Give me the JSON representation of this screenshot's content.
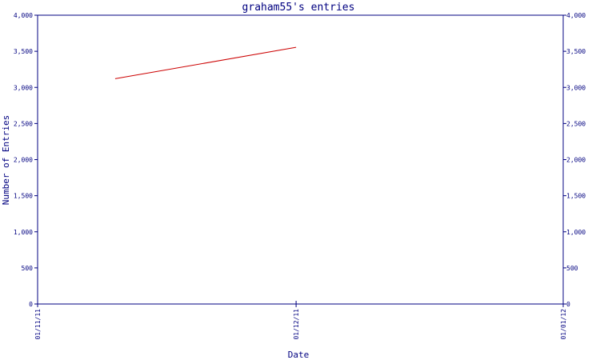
{
  "chart_data": {
    "type": "line",
    "title": "graham55's entries",
    "xlabel": "Date",
    "ylabel": "Number of Entries",
    "x_ticks": [
      "01/11/11",
      "01/12/11",
      "01/01/12"
    ],
    "y_ticks": [
      "0",
      "500",
      "1,000",
      "1,500",
      "2,000",
      "2,500",
      "3,000",
      "3,500",
      "4,000"
    ],
    "ylim": [
      0,
      4000
    ],
    "xlim": [
      "01/11/11",
      "01/01/12"
    ],
    "grid": false,
    "right_axis": true,
    "series": [
      {
        "color": "#cc0000",
        "x": [
          "2011-11-10",
          "2011-12-01"
        ],
        "values": [
          3120,
          3555
        ]
      }
    ]
  },
  "colors": {
    "axis": "#000080",
    "text": "#000080",
    "line": "#cc0000"
  }
}
